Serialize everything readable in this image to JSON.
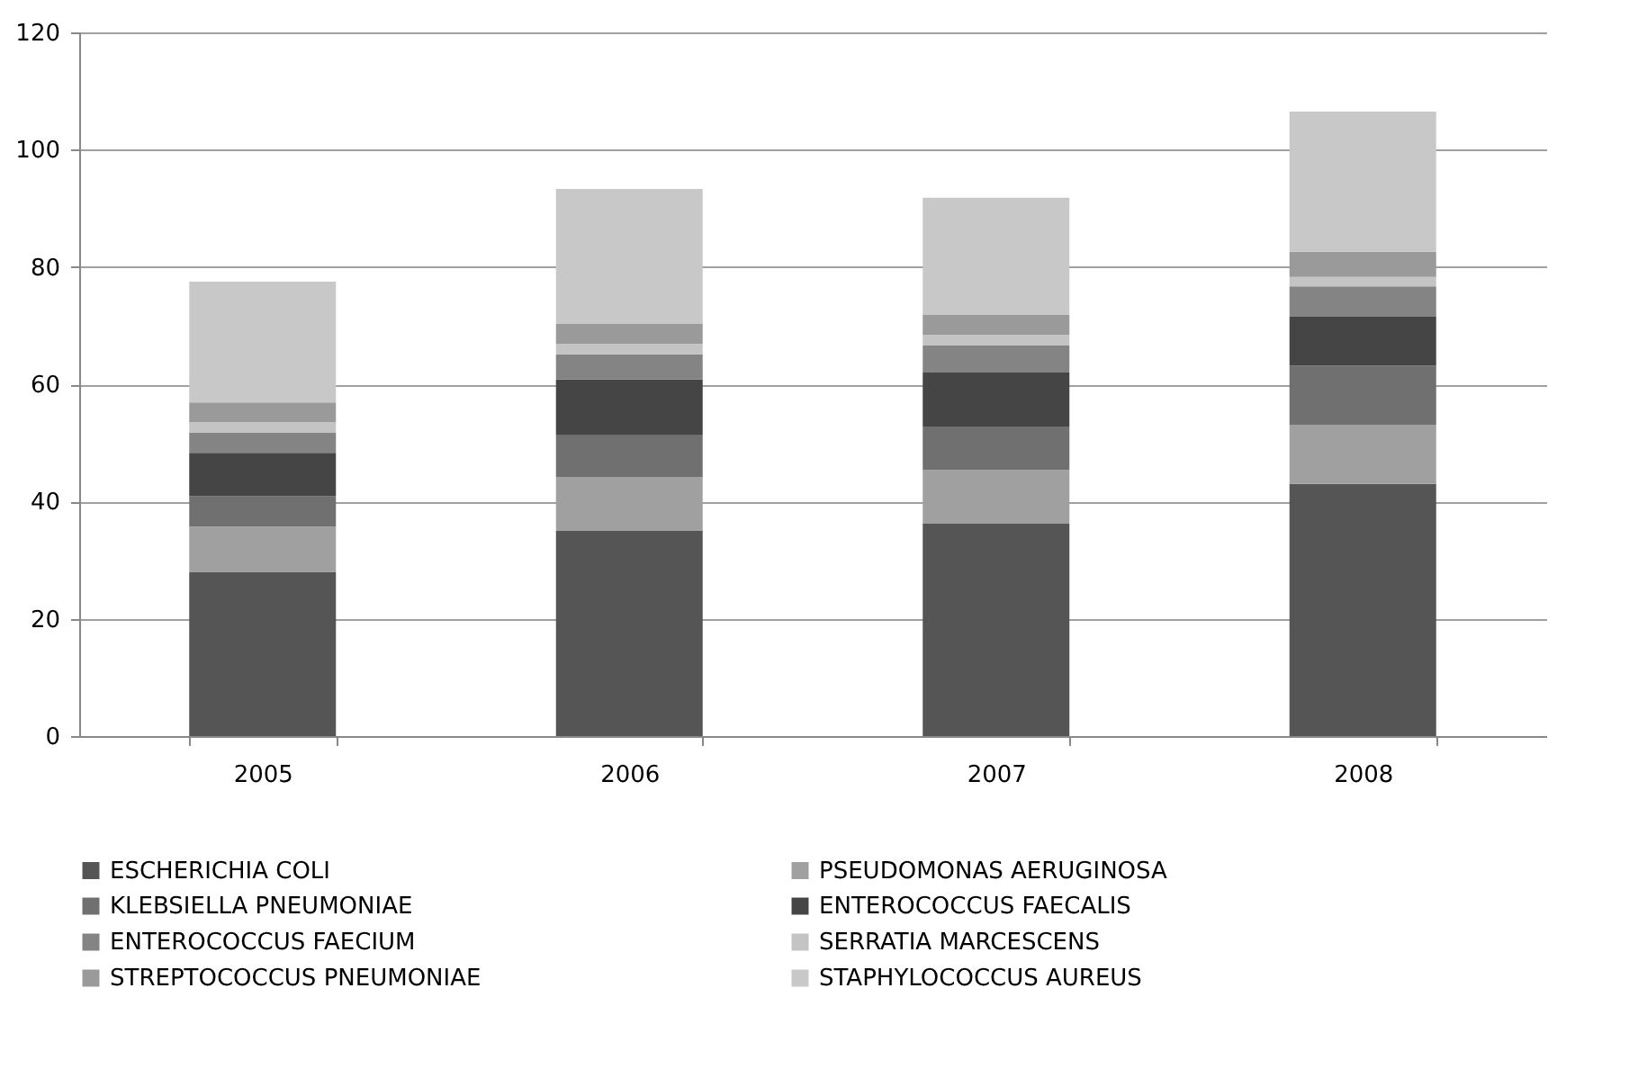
{
  "chart_data": {
    "type": "bar",
    "stacked": true,
    "categories": [
      "2005",
      "2006",
      "2007",
      "2008"
    ],
    "series": [
      {
        "name": "ESCHERICHIA COLI",
        "color": "#555555",
        "values": [
          28,
          35,
          36.2,
          43
        ]
      },
      {
        "name": "PSEUDOMONAS AERUGINOSA",
        "color": "#a0a0a0",
        "values": [
          7.7,
          9.2,
          9.2,
          10.1
        ]
      },
      {
        "name": "KLEBSIELLA PNEUMONIAE",
        "color": "#707070",
        "values": [
          5.2,
          7.1,
          7.4,
          10.1
        ]
      },
      {
        "name": "ENTEROCOCCUS FAECALIS",
        "color": "#454545",
        "values": [
          7.4,
          9.5,
          9.2,
          8.3
        ]
      },
      {
        "name": "ENTEROCOCCUS FAECIUM",
        "color": "#848484",
        "values": [
          3.4,
          4.3,
          4.6,
          5.2
        ]
      },
      {
        "name": "SERRATIA MARCESCENS",
        "color": "#c4c4c4",
        "values": [
          1.8,
          1.8,
          1.8,
          1.6
        ]
      },
      {
        "name": "STREPTOCOCCUS PNEUMONIAE",
        "color": "#9a9a9a",
        "values": [
          3.4,
          3.4,
          3.4,
          4.3
        ]
      },
      {
        "name": "STAPHYLOCOCCUS AUREUS",
        "color": "#c8c8c8",
        "values": [
          20.6,
          23,
          20,
          23.9
        ]
      }
    ],
    "ylim": [
      0,
      120
    ],
    "yticks": [
      0,
      20,
      40,
      60,
      80,
      100,
      120
    ],
    "grid": "y",
    "legend": "bottom"
  }
}
